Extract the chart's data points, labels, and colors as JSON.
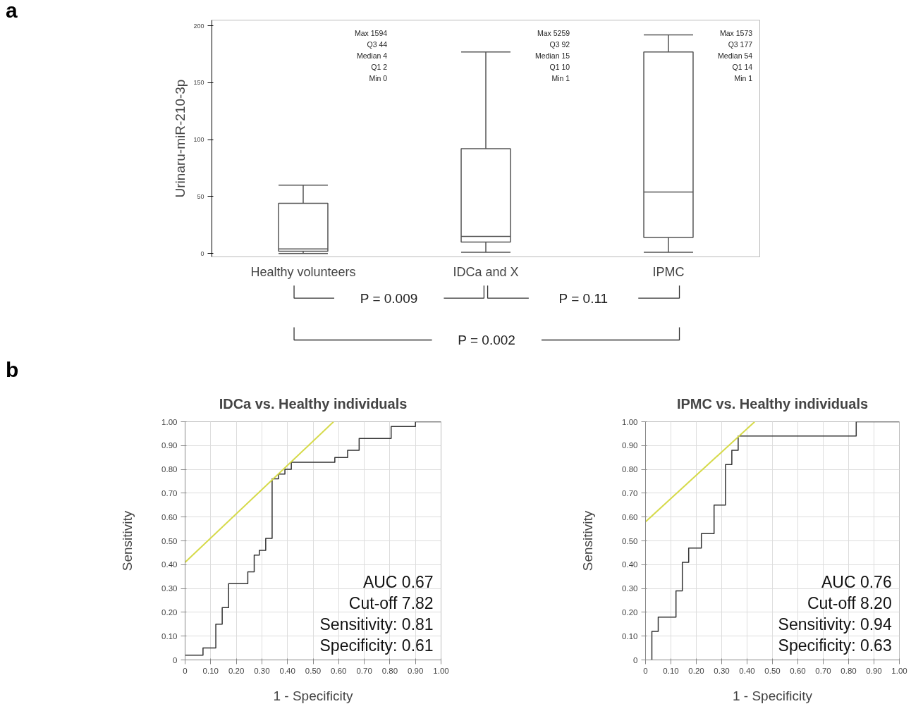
{
  "chart_data": [
    {
      "type": "box",
      "ylabel": "Urinaru-miR-210-3p",
      "categories": [
        "Healthy volunteers",
        "IDCa and X",
        "IPMC"
      ],
      "ylim": [
        -3,
        205
      ],
      "yticks": [
        0,
        50,
        100,
        150,
        200
      ],
      "series": [
        {
          "color": "#555555",
          "boxes": [
            {
              "low": 0,
              "q1": 2,
              "median": 4,
              "q3": 44,
              "high": 60
            },
            {
              "low": 1,
              "q1": 10,
              "median": 15,
              "q3": 92,
              "high": 177
            },
            {
              "low": 1,
              "q1": 14,
              "median": 54,
              "q3": 177,
              "high": 192
            }
          ]
        }
      ],
      "annotations": [
        "a",
        "Max 1594\nQ3 44\nMedian 4\nQ1 2\nMin 0",
        "Max 5259\nQ3 92\nMedian 15\nQ1 10\nMin 1",
        "Max 1573\nQ3 177\nMedian 54\nQ1 14\nMin 1",
        "P = 0.009",
        "P = 0.11",
        "P = 0.002"
      ]
    },
    {
      "type": "step",
      "title": "IDCa vs. Healthy individuals",
      "xlabel": "1 - Specificity",
      "ylabel": "Sensitivity",
      "xlim": [
        0,
        1
      ],
      "ylim": [
        0,
        1
      ],
      "grid": true,
      "xticks": [
        0,
        {
          "value": 0.1,
          "label": "0.10"
        },
        {
          "value": 0.2,
          "label": "0.20"
        },
        {
          "value": 0.3,
          "label": "0.30"
        },
        {
          "value": 0.4,
          "label": "0.40"
        },
        {
          "value": 0.5,
          "label": "0.50"
        },
        {
          "value": 0.6,
          "label": "0.60"
        },
        {
          "value": 0.7,
          "label": "0.70"
        },
        {
          "value": 0.8,
          "label": "0.80"
        },
        {
          "value": 0.9,
          "label": "0.90"
        },
        {
          "value": 1,
          "label": "1.00"
        }
      ],
      "yticks": [
        0,
        {
          "value": 0.1,
          "label": "0.10"
        },
        {
          "value": 0.2,
          "label": "0.20"
        },
        {
          "value": 0.3,
          "label": "0.30"
        },
        {
          "value": 0.4,
          "label": "0.40"
        },
        {
          "value": 0.5,
          "label": "0.50"
        },
        {
          "value": 0.6,
          "label": "0.60"
        },
        {
          "value": 0.7,
          "label": "0.70"
        },
        {
          "value": 0.8,
          "label": "0.80"
        },
        {
          "value": 0.9,
          "label": "0.90"
        },
        {
          "value": 1,
          "label": "1.00"
        }
      ],
      "series": [
        {
          "type": "step",
          "color": "#333333",
          "x": [
            0,
            0.07,
            0.12,
            0.145,
            0.17,
            0.245,
            0.27,
            0.29,
            0.315,
            0.34,
            0.365,
            0.39,
            0.415,
            0.585,
            0.635,
            0.68,
            0.805,
            0.9,
            1.0
          ],
          "values": [
            0.02,
            0.05,
            0.15,
            0.22,
            0.32,
            0.37,
            0.44,
            0.46,
            0.51,
            0.76,
            0.78,
            0.8,
            0.83,
            0.85,
            0.88,
            0.93,
            0.98,
            1.0,
            1.0
          ]
        },
        {
          "type": "line",
          "color": "#d6da4a",
          "x": [
            0,
            0.58
          ],
          "values": [
            0.41,
            1.0
          ]
        }
      ],
      "annotations": [
        "b",
        "AUC 0.67",
        "Cut-off 7.82",
        "Sensitivity: 0.81",
        "Specificity: 0.61"
      ]
    },
    {
      "type": "step",
      "title": "IPMC vs. Healthy individuals",
      "xlabel": "1 - Specificity",
      "ylabel": "Sensitivity",
      "xlim": [
        0,
        1
      ],
      "ylim": [
        0,
        1
      ],
      "grid": true,
      "xticks": [
        0,
        {
          "value": 0.1,
          "label": "0.10"
        },
        {
          "value": 0.2,
          "label": "0.20"
        },
        {
          "value": 0.3,
          "label": "0.30"
        },
        {
          "value": 0.4,
          "label": "0.40"
        },
        {
          "value": 0.5,
          "label": "0.50"
        },
        {
          "value": 0.6,
          "label": "0.60"
        },
        {
          "value": 0.7,
          "label": "0.70"
        },
        {
          "value": 0.8,
          "label": "0.80"
        },
        {
          "value": 0.9,
          "label": "0.90"
        },
        {
          "value": 1,
          "label": "1.00"
        }
      ],
      "yticks": [
        0,
        {
          "value": 0.1,
          "label": "0.10"
        },
        {
          "value": 0.2,
          "label": "0.20"
        },
        {
          "value": 0.3,
          "label": "0.30"
        },
        {
          "value": 0.4,
          "label": "0.40"
        },
        {
          "value": 0.5,
          "label": "0.50"
        },
        {
          "value": 0.6,
          "label": "0.60"
        },
        {
          "value": 0.7,
          "label": "0.70"
        },
        {
          "value": 0.8,
          "label": "0.80"
        },
        {
          "value": 0.9,
          "label": "0.90"
        },
        {
          "value": 1,
          "label": "1.00"
        }
      ],
      "series": [
        {
          "type": "step",
          "color": "#333333",
          "x": [
            0.025,
            0.025,
            0.05,
            0.12,
            0.145,
            0.17,
            0.22,
            0.27,
            0.315,
            0.34,
            0.365,
            0.83,
            1.0
          ],
          "values": [
            0,
            0.12,
            0.18,
            0.29,
            0.41,
            0.47,
            0.53,
            0.65,
            0.82,
            0.88,
            0.94,
            1.0,
            1.0
          ]
        },
        {
          "type": "line",
          "color": "#d6da4a",
          "x": [
            0,
            0.43
          ],
          "values": [
            0.58,
            1.0
          ]
        }
      ],
      "annotations": [
        "AUC 0.76",
        "Cut-off 8.20",
        "Sensitivity: 0.94",
        "Specificity: 0.63"
      ]
    }
  ]
}
